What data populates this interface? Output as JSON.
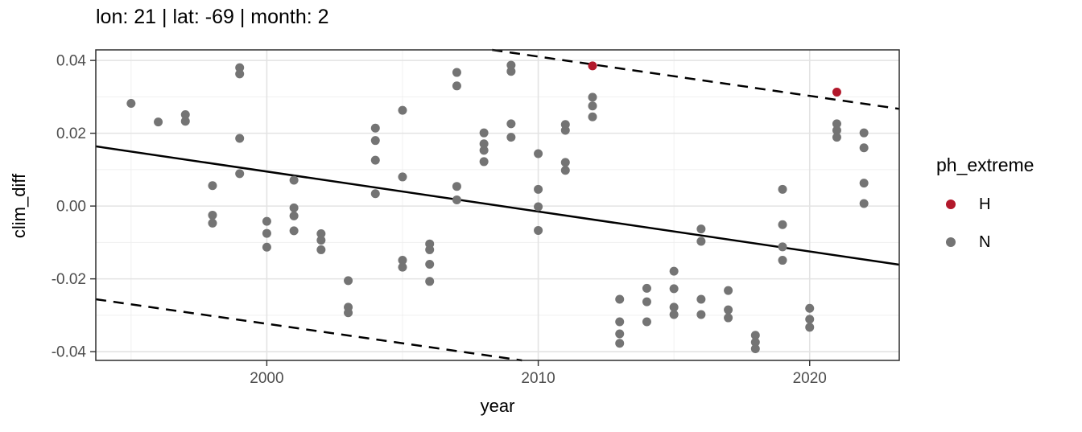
{
  "chart_data": {
    "type": "scatter",
    "title": "lon: 21 | lat: -69 | month: 2",
    "xlabel": "year",
    "ylabel": "clim_diff",
    "x_domain": [
      1993.7,
      2023.3
    ],
    "y_domain": [
      -0.0424,
      0.0429
    ],
    "x_ticks": [
      {
        "value": 2000,
        "label": "2000"
      },
      {
        "value": 2010,
        "label": "2010"
      },
      {
        "value": 2020,
        "label": "2020"
      }
    ],
    "x_minor_ticks": [
      1995,
      2005,
      2015
    ],
    "y_ticks": [
      {
        "value": 0.04,
        "label": "0.04"
      },
      {
        "value": 0.02,
        "label": "0.02"
      },
      {
        "value": 0.0,
        "label": "0.00"
      },
      {
        "value": -0.02,
        "label": "-0.02"
      },
      {
        "value": -0.04,
        "label": "-0.04"
      }
    ],
    "y_minor_ticks": [
      0.03,
      0.01,
      -0.01,
      -0.03
    ],
    "grid": true,
    "legend": {
      "title": "ph_extreme",
      "position": "right",
      "items": [
        {
          "label": "H",
          "color": "#B2182B"
        },
        {
          "label": "N",
          "color": "#747474"
        }
      ]
    },
    "colors": {
      "panel_bg": "#FFFFFF",
      "grid_major": "#E3E3E3",
      "grid_minor": "#EFEFEF",
      "border": "#2E2E2E",
      "tick_label": "#4D4D4D",
      "line": "#000000"
    },
    "lines": [
      {
        "name": "trend-line-solid",
        "style": "solid",
        "x1": 1993.7,
        "y1": 0.0164,
        "x2": 2023.3,
        "y2": -0.0161
      },
      {
        "name": "upper-dashed-line",
        "style": "dashed",
        "x1": 2008.3,
        "y1": 0.0429,
        "x2": 2023.3,
        "y2": 0.0267
      },
      {
        "name": "lower-dashed-line",
        "style": "dashed",
        "x1": 1993.7,
        "y1": -0.0256,
        "x2": 2009.4,
        "y2": -0.0424
      }
    ],
    "series": [
      {
        "name": "H",
        "color": "#B2182B",
        "points": [
          [
            2012,
            0.0385
          ],
          [
            2021,
            0.0313
          ]
        ]
      },
      {
        "name": "N",
        "color": "#747474",
        "points": [
          [
            1995,
            0.0282
          ],
          [
            1996,
            0.0231
          ],
          [
            1997,
            0.0251
          ],
          [
            1997,
            0.0233
          ],
          [
            1998,
            0.0056
          ],
          [
            1998,
            -0.0025
          ],
          [
            1998,
            -0.0047
          ],
          [
            1999,
            0.038
          ],
          [
            1999,
            0.0363
          ],
          [
            1999,
            0.0186
          ],
          [
            1999,
            0.0089
          ],
          [
            2000,
            -0.0042
          ],
          [
            2000,
            -0.0075
          ],
          [
            2000,
            -0.0113
          ],
          [
            2001,
            0.0071
          ],
          [
            2001,
            -0.0005
          ],
          [
            2001,
            -0.0027
          ],
          [
            2001,
            -0.0068
          ],
          [
            2002,
            -0.0076
          ],
          [
            2002,
            -0.0094
          ],
          [
            2002,
            -0.012
          ],
          [
            2003,
            -0.0205
          ],
          [
            2003,
            -0.0278
          ],
          [
            2003,
            -0.0293
          ],
          [
            2004,
            0.0214
          ],
          [
            2004,
            0.018
          ],
          [
            2004,
            0.0126
          ],
          [
            2004,
            0.0034
          ],
          [
            2005,
            0.0263
          ],
          [
            2005,
            0.008
          ],
          [
            2005,
            -0.0149
          ],
          [
            2005,
            -0.0168
          ],
          [
            2006,
            -0.0104
          ],
          [
            2006,
            -0.012
          ],
          [
            2006,
            -0.016
          ],
          [
            2006,
            -0.0207
          ],
          [
            2007,
            0.0367
          ],
          [
            2007,
            0.033
          ],
          [
            2007,
            0.0054
          ],
          [
            2007,
            0.0017
          ],
          [
            2008,
            0.0201
          ],
          [
            2008,
            0.0171
          ],
          [
            2008,
            0.0153
          ],
          [
            2008,
            0.0122
          ],
          [
            2009,
            0.0387
          ],
          [
            2009,
            0.037
          ],
          [
            2009,
            0.0226
          ],
          [
            2009,
            0.0189
          ],
          [
            2010,
            0.0144
          ],
          [
            2010,
            0.0046
          ],
          [
            2010,
            -0.0002
          ],
          [
            2010,
            -0.0067
          ],
          [
            2011,
            0.0224
          ],
          [
            2011,
            0.0208
          ],
          [
            2011,
            0.012
          ],
          [
            2011,
            0.0098
          ],
          [
            2012,
            0.0299
          ],
          [
            2012,
            0.0275
          ],
          [
            2012,
            0.0245
          ],
          [
            2013,
            -0.0256
          ],
          [
            2013,
            -0.0318
          ],
          [
            2013,
            -0.0351
          ],
          [
            2013,
            -0.0377
          ],
          [
            2014,
            -0.0226
          ],
          [
            2014,
            -0.0263
          ],
          [
            2014,
            -0.0318
          ],
          [
            2015,
            -0.0179
          ],
          [
            2015,
            -0.0227
          ],
          [
            2015,
            -0.0278
          ],
          [
            2015,
            -0.0298
          ],
          [
            2016,
            -0.0063
          ],
          [
            2016,
            -0.0097
          ],
          [
            2016,
            -0.0256
          ],
          [
            2016,
            -0.0298
          ],
          [
            2017,
            -0.0232
          ],
          [
            2017,
            -0.0285
          ],
          [
            2017,
            -0.0307
          ],
          [
            2018,
            -0.0355
          ],
          [
            2018,
            -0.0374
          ],
          [
            2018,
            -0.0392
          ],
          [
            2019,
            0.0046
          ],
          [
            2019,
            -0.0051
          ],
          [
            2019,
            -0.0112
          ],
          [
            2019,
            -0.0149
          ],
          [
            2020,
            -0.0281
          ],
          [
            2020,
            -0.0311
          ],
          [
            2020,
            -0.0333
          ],
          [
            2021,
            0.0226
          ],
          [
            2021,
            0.0208
          ],
          [
            2021,
            0.0189
          ],
          [
            2022,
            0.0201
          ],
          [
            2022,
            0.016
          ],
          [
            2022,
            0.0063
          ],
          [
            2022,
            0.0007
          ]
        ]
      }
    ]
  }
}
